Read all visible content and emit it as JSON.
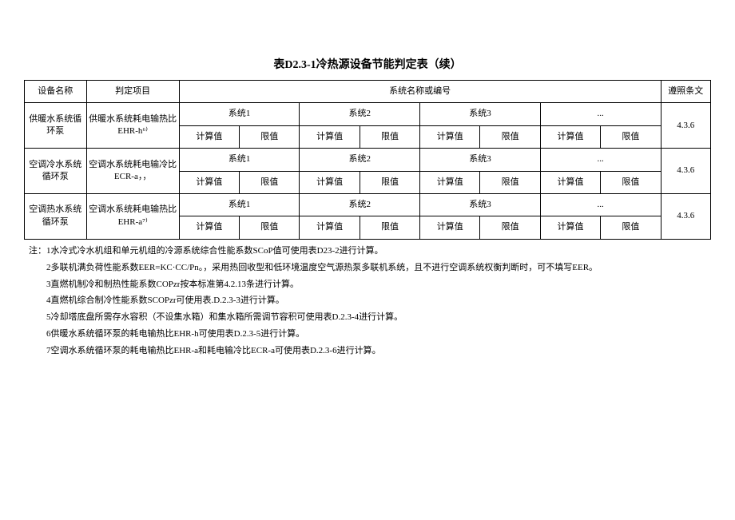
{
  "title": "表D2.3-1冷热源设备节能判定表（续）",
  "header": {
    "device": "设备名称",
    "judge": "判定项目",
    "system_group": "系统名称或编号",
    "ref": "遵照条文"
  },
  "sublabels": {
    "sys1": "系统1",
    "sys2": "系统2",
    "sys3": "系统3",
    "more": "...",
    "calc": "计算值",
    "limit": "限值"
  },
  "rows": [
    {
      "device": "供暖水系统循环泵",
      "judge": "供暖水系统耗电输热比EHR-h⁶⁾",
      "ref": "4.3.6"
    },
    {
      "device": "空调冷水系统循环泵",
      "judge": "空调水系统耗电输冷比ECR-a，，",
      "ref": "4.3.6"
    },
    {
      "device": "空调热水系统循环泵",
      "judge": "空调水系统耗电输热比EHR-a⁷⁾",
      "ref": "4.3.6"
    }
  ],
  "notes": {
    "prefix": "注：",
    "lines": [
      "1水冷式冷水机组和单元机组的冷源系统综合性能系数SCoP值可使用表D23-2进行计算。",
      "2多联机满负荷性能系数EER=KC·CC/Pn。，采用热回收型和低环境温度空气源热泵多联机系统，且不进行空调系统权衡判断时，可不填写EER。",
      "3直燃机制冷和制热性能系数COPzr按本标准第4.2.13条进行计算。",
      "4直燃机综合制冷性能系数SCOPzr可使用表.D.2.3-3进行计算。",
      "5冷却塔底盘所需存水容积（不设集水箱）和集水箱所需调节容积可使用表D.2.3-4进行计算。",
      "6供暖水系统循环泵的耗电输热比EHR-h可使用表D.2.3-5进行计算。",
      "7空调水系统循环泵的耗电输热比EHR-a和耗电输冷比ECR-a可使用表D.2.3-6进行计算。"
    ]
  }
}
